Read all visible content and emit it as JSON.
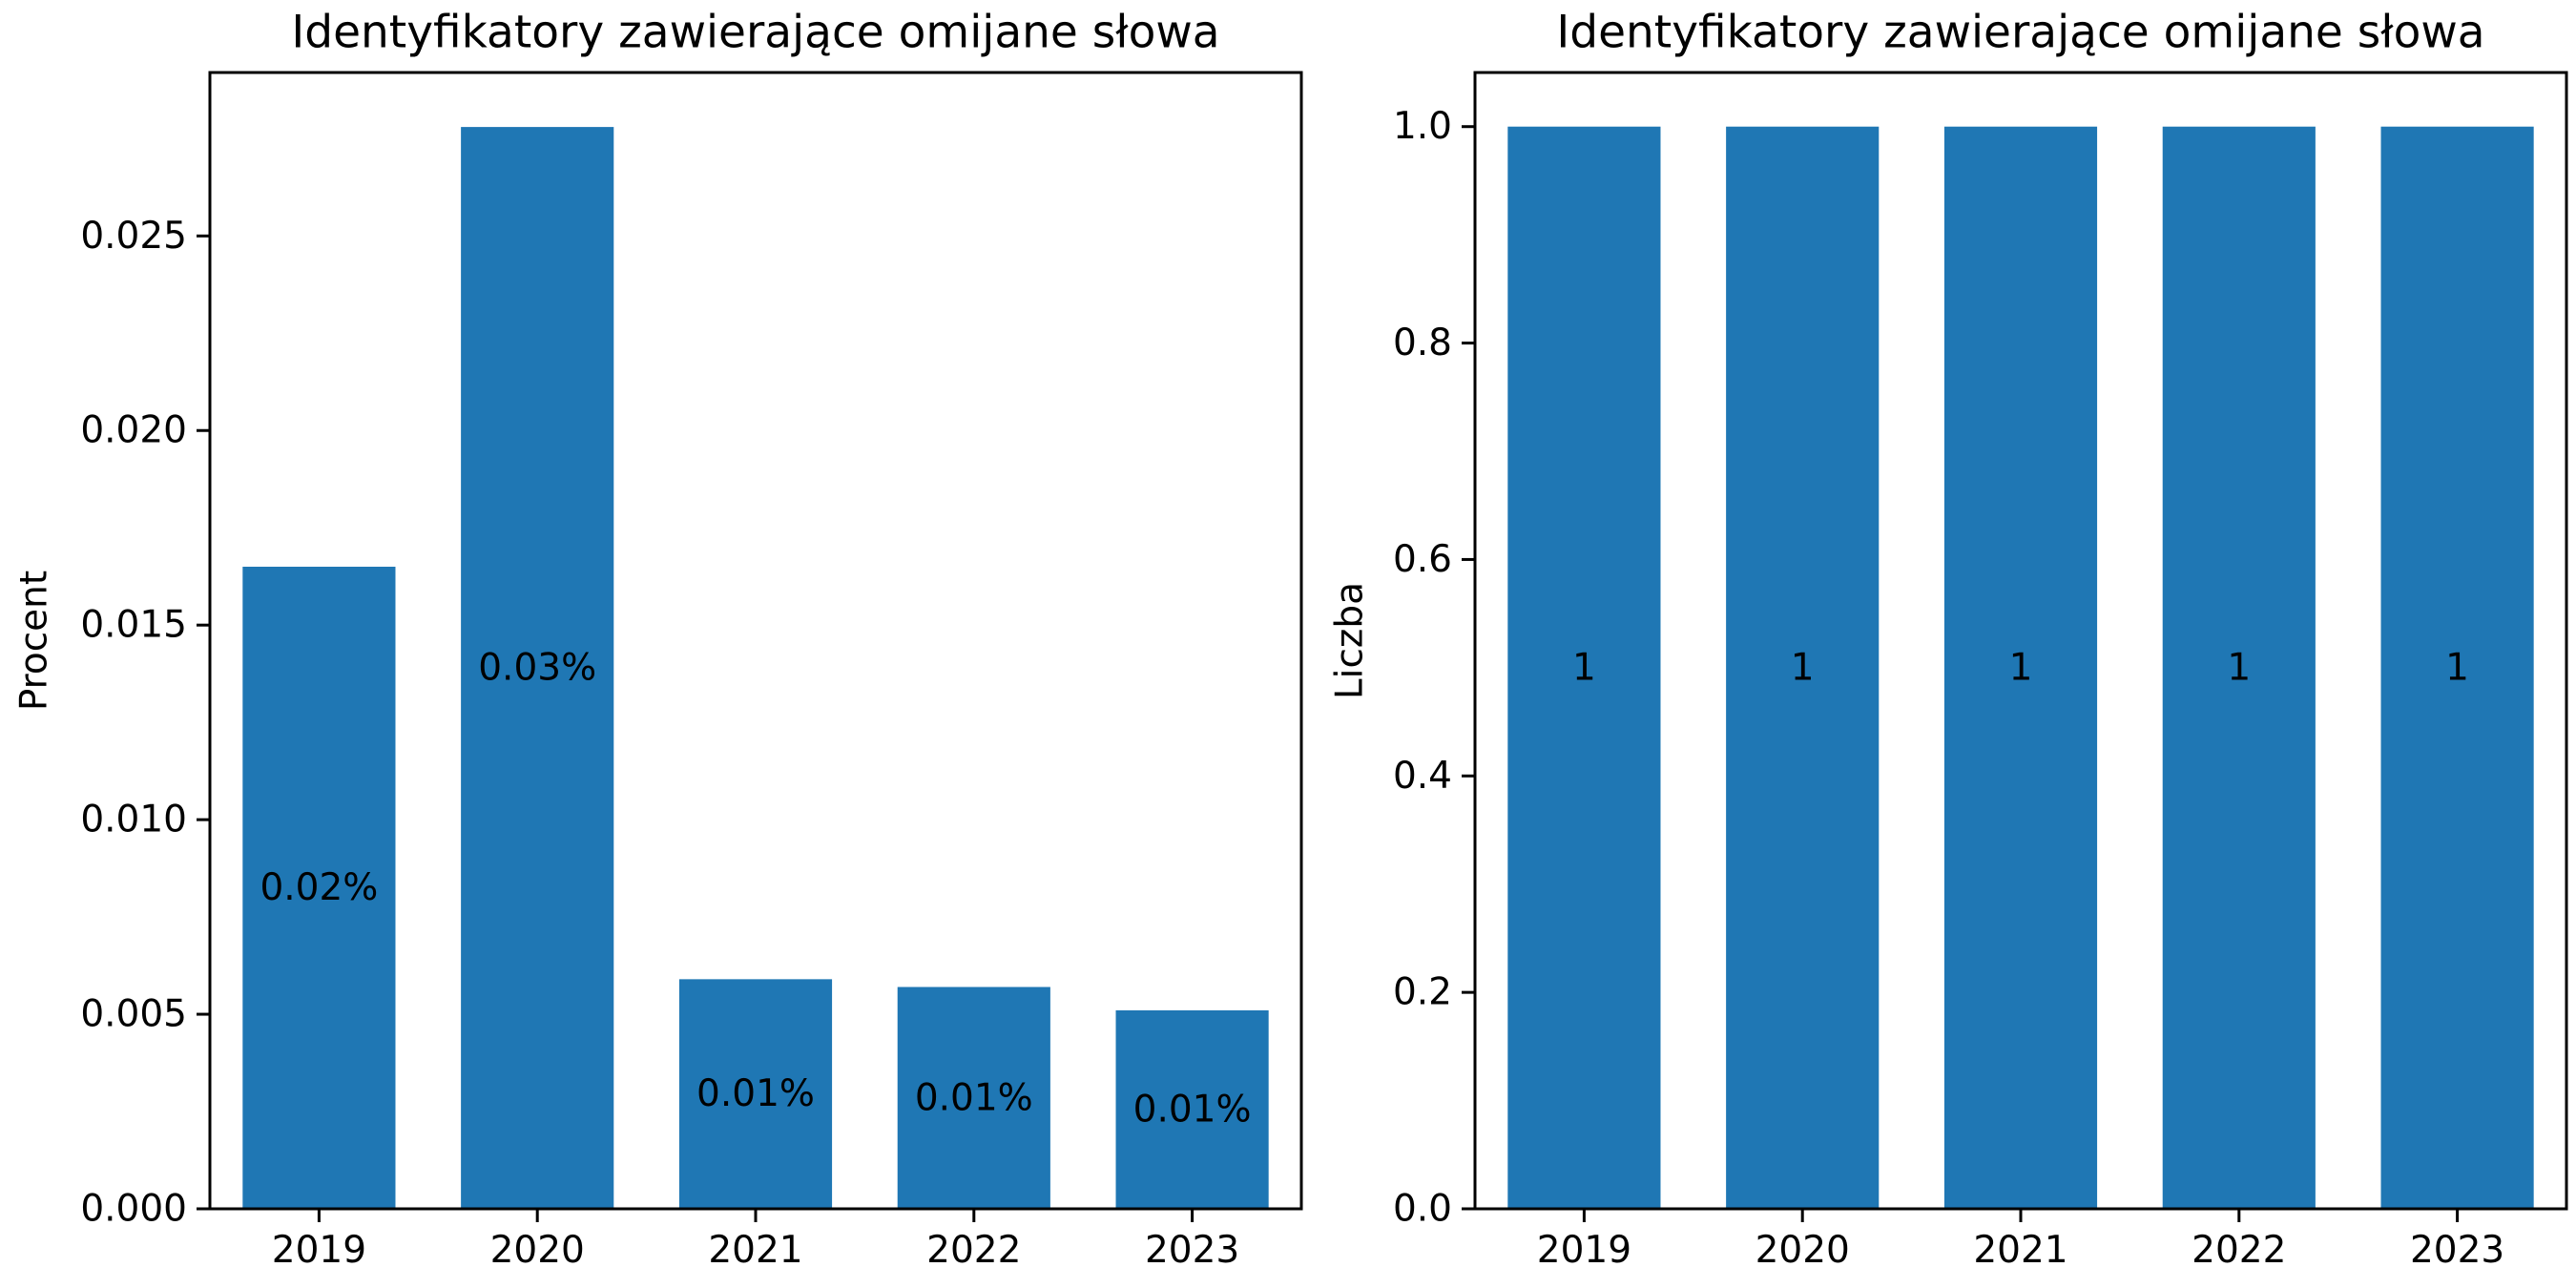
{
  "chart_data": [
    {
      "type": "bar",
      "title": "Identyfikatory zawierające omijane słowa",
      "xlabel": "",
      "ylabel": "Procent",
      "categories": [
        "2019",
        "2020",
        "2021",
        "2022",
        "2023"
      ],
      "values": [
        0.0165,
        0.0278,
        0.0059,
        0.0057,
        0.0051
      ],
      "data_labels": [
        "0.02%",
        "0.03%",
        "0.01%",
        "0.01%",
        "0.01%"
      ],
      "ylim": [
        0,
        0.0292
      ],
      "yticks": [
        0.0,
        0.005,
        0.01,
        0.015,
        0.02,
        0.025
      ],
      "ytick_labels": [
        "0.000",
        "0.005",
        "0.010",
        "0.015",
        "0.020",
        "0.025"
      ],
      "color": "#1f77b4",
      "grid": false,
      "legend": "none"
    },
    {
      "type": "bar",
      "title": "Identyfikatory zawierające omijane słowa",
      "xlabel": "",
      "ylabel": "Liczba",
      "categories": [
        "2019",
        "2020",
        "2021",
        "2022",
        "2023"
      ],
      "values": [
        1,
        1,
        1,
        1,
        1
      ],
      "data_labels": [
        "1",
        "1",
        "1",
        "1",
        "1"
      ],
      "ylim": [
        0,
        1.05
      ],
      "yticks": [
        0.0,
        0.2,
        0.4,
        0.6,
        0.8,
        1.0
      ],
      "ytick_labels": [
        "0.0",
        "0.2",
        "0.4",
        "0.6",
        "0.8",
        "1.0"
      ],
      "color": "#1f77b4",
      "grid": false,
      "legend": "none"
    }
  ]
}
